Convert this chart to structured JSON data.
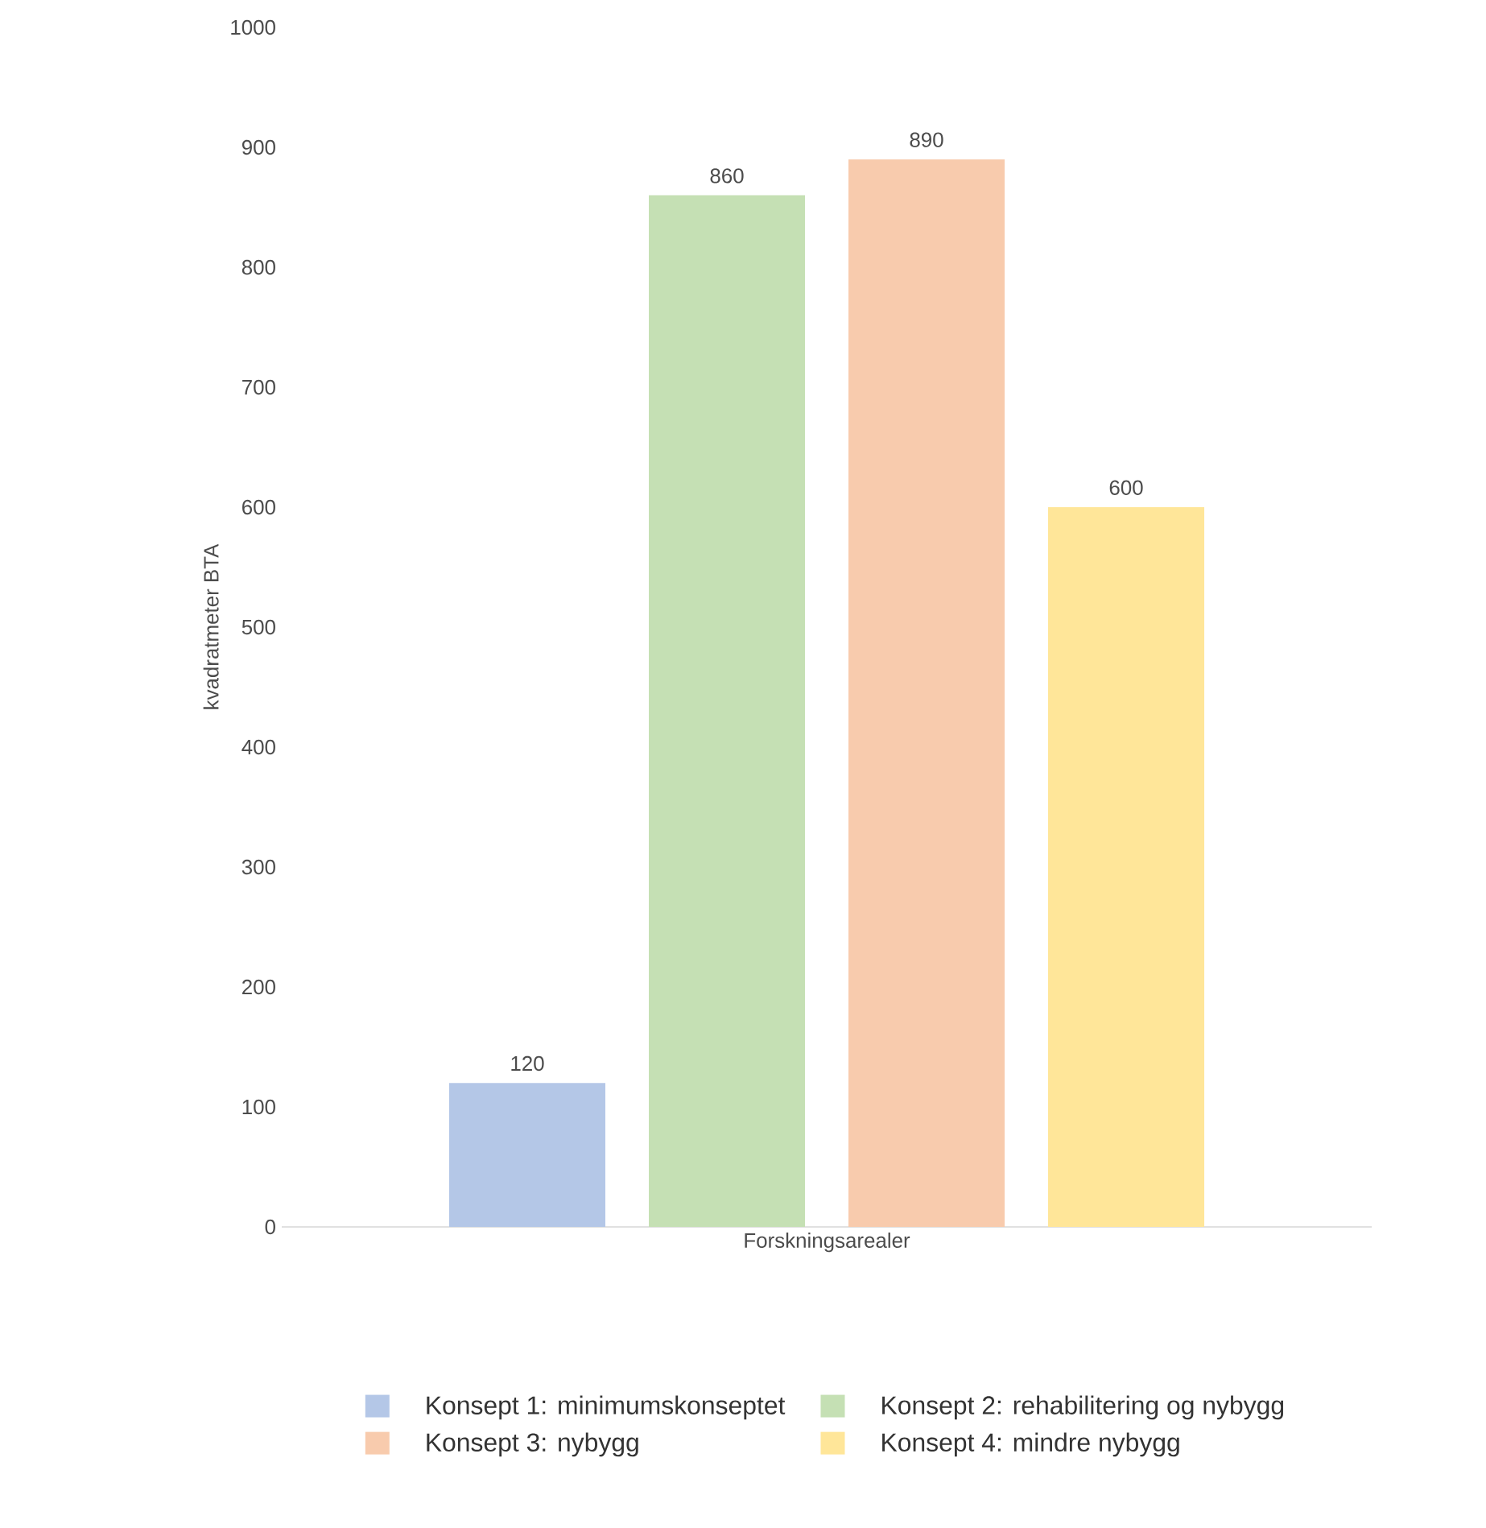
{
  "chart_data": {
    "type": "bar",
    "categories": [
      "Forskningsarealer"
    ],
    "ylabel": "kvadratmeter BTA",
    "ylim": [
      0,
      1000
    ],
    "yticks": [
      0,
      100,
      200,
      300,
      400,
      500,
      600,
      700,
      800,
      900,
      1000
    ],
    "data_labels": true,
    "legend": "bottom",
    "series": [
      {
        "name": "Konsept 1: minimumskonseptet",
        "color": "#b4c7e7",
        "values": [
          120
        ]
      },
      {
        "name": "Konsept 2: rehabilitering og nybygg",
        "color": "#c5e0b4",
        "values": [
          860
        ]
      },
      {
        "name": "Konsept 3: nybygg",
        "color": "#f8cbad",
        "values": [
          890
        ]
      },
      {
        "name": "Konsept 4: mindre nybygg",
        "color": "#ffe699",
        "values": [
          600
        ]
      }
    ]
  }
}
